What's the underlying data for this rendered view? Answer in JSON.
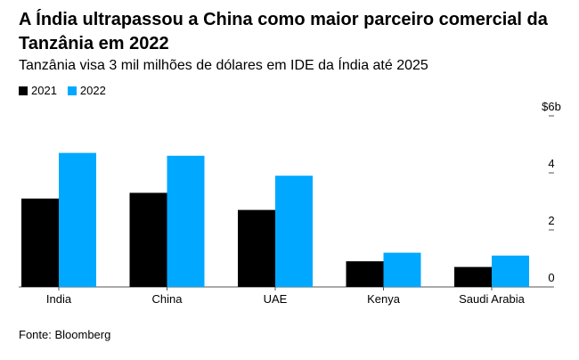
{
  "title": "A Índia ultrapassou a China como maior parceiro comercial da Tanzânia em 2022",
  "subtitle": "Tanzânia visa 3 mil milhões de dólares em IDE da Índia até 2025",
  "source": "Fonte: Bloomberg",
  "colors": {
    "2021": "#000000",
    "2022": "#00a8ff"
  },
  "chart_data": {
    "type": "bar",
    "categories": [
      "India",
      "China",
      "UAE",
      "Kenya",
      "Saudi Arabia"
    ],
    "series": [
      {
        "name": "2021",
        "values": [
          3.1,
          3.3,
          2.7,
          0.9,
          0.7
        ]
      },
      {
        "name": "2022",
        "values": [
          4.7,
          4.6,
          3.9,
          1.2,
          1.1
        ]
      }
    ],
    "ylim": [
      0,
      6
    ],
    "yticks": [
      0,
      2,
      4,
      6
    ],
    "ytick_labels": [
      "0",
      "2",
      "4",
      "$6b"
    ],
    "grid": false,
    "legend_position": "top-left"
  }
}
